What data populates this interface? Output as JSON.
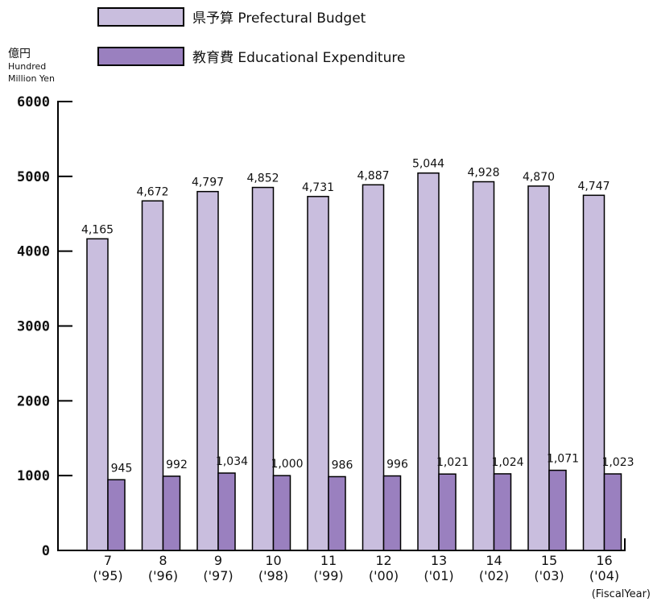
{
  "legend": {
    "budget_label": "県予算  Prefectural Budget",
    "education_label": "教育費  Educational Expenditure"
  },
  "y_unit": {
    "main": "億円",
    "line1": "Hundred",
    "line2": "Million Yen"
  },
  "x_unit": "(FiscalYear)",
  "colors": {
    "budget": "#c9bede",
    "education": "#9a80bf",
    "axis": "#000000"
  },
  "chart_data": {
    "type": "bar",
    "categories": [
      "7 ('95)",
      "8 ('96)",
      "9 ('97)",
      "10 ('98)",
      "11 ('99)",
      "12 ('00)",
      "13 ('01)",
      "14 ('02)",
      "15 ('03)",
      "16 ('04)"
    ],
    "category_lines": [
      [
        "7",
        "('95)"
      ],
      [
        "8",
        "('96)"
      ],
      [
        "9",
        "('97)"
      ],
      [
        "10",
        "('98)"
      ],
      [
        "11",
        "('99)"
      ],
      [
        "12",
        "('00)"
      ],
      [
        "13",
        "('01)"
      ],
      [
        "14",
        "('02)"
      ],
      [
        "15",
        "('03)"
      ],
      [
        "16",
        "('04)"
      ]
    ],
    "series": [
      {
        "name": "県予算 Prefectural Budget",
        "values": [
          4165,
          4672,
          4797,
          4852,
          4731,
          4887,
          5044,
          4928,
          4870,
          4747
        ],
        "labels": [
          "4,165",
          "4,672",
          "4,797",
          "4,852",
          "4,731",
          "4,887",
          "5,044",
          "4,928",
          "4,870",
          "4,747"
        ]
      },
      {
        "name": "教育費 Educational Expenditure",
        "values": [
          945,
          992,
          1034,
          1000,
          986,
          996,
          1021,
          1024,
          1071,
          1023
        ],
        "labels": [
          "945",
          "992",
          "1,034",
          "1,000",
          "986",
          "996",
          "1,021",
          "1,024",
          "1,071",
          "1,023"
        ]
      }
    ],
    "yticks": [
      0,
      1000,
      2000,
      3000,
      4000,
      5000,
      6000
    ],
    "ylim": [
      0,
      6000
    ],
    "xlabel": "(FiscalYear)",
    "ylabel": "億円 Hundred Million Yen",
    "grid": false,
    "legend_position": "top"
  }
}
